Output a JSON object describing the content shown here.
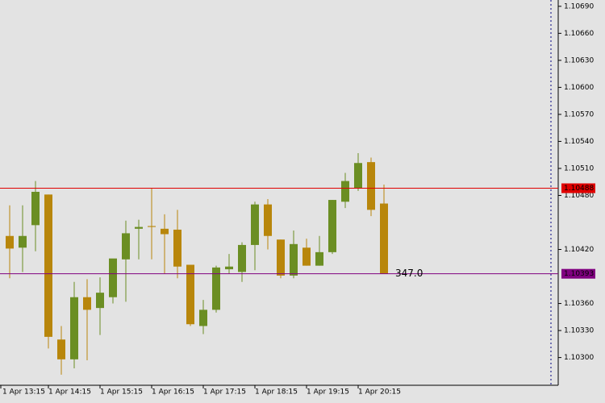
{
  "chart_data": {
    "type": "candlestick",
    "categories": [
      "1 Apr 13:15",
      null,
      null,
      null,
      "1 Apr 14:15",
      null,
      null,
      null,
      "1 Apr 15:15",
      null,
      null,
      null,
      "1 Apr 16:15",
      null,
      null,
      null,
      "1 Apr 17:15",
      null,
      null,
      null,
      "1 Apr 18:15",
      null,
      null,
      null,
      "1 Apr 19:15",
      null,
      null,
      null,
      "1 Apr 20:15",
      null,
      null
    ],
    "open": [
      null,
      1.10435,
      1.10422,
      1.10447,
      1.10481,
      1.1032,
      1.10298,
      1.10367,
      1.10355,
      1.10367,
      1.10409,
      1.10443,
      1.10446,
      1.10443,
      1.10442,
      1.10403,
      1.10335,
      1.10353,
      1.10398,
      1.10395,
      1.10425,
      1.1047,
      1.10431,
      1.10391,
      1.10422,
      1.10402,
      1.10417,
      1.10473,
      1.10488,
      1.10517,
      1.10471
    ],
    "high": [
      null,
      1.10469,
      1.10469,
      1.10496,
      1.10481,
      1.10335,
      1.10384,
      1.10387,
      1.10389,
      1.10409,
      1.10452,
      1.10453,
      1.10488,
      1.10459,
      1.10464,
      1.10403,
      1.10364,
      1.10402,
      1.10415,
      1.10428,
      1.10473,
      1.10476,
      1.10431,
      1.10441,
      1.10432,
      1.10435,
      1.10475,
      1.10505,
      1.10527,
      1.10522,
      1.10492
    ],
    "low": [
      null,
      1.10388,
      1.10395,
      1.10418,
      1.1031,
      1.10281,
      1.10288,
      1.10297,
      1.10325,
      1.1036,
      1.10362,
      1.10409,
      1.10409,
      1.10393,
      1.10388,
      1.10335,
      1.10326,
      1.1035,
      1.10393,
      1.10384,
      1.10397,
      1.1042,
      1.10388,
      1.10388,
      1.10402,
      1.10402,
      1.10415,
      1.10466,
      1.10485,
      1.10457,
      1.10393
    ],
    "close": [
      null,
      1.10421,
      1.10435,
      1.10484,
      1.10323,
      1.10298,
      1.10367,
      1.10353,
      1.10372,
      1.1041,
      1.10438,
      1.10445,
      1.10445,
      1.10437,
      1.10401,
      1.10337,
      1.10353,
      1.104,
      1.10401,
      1.10425,
      1.1047,
      1.10435,
      1.10391,
      1.10426,
      1.10402,
      1.10417,
      1.10475,
      1.10496,
      1.10516,
      1.10464,
      1.10393
    ],
    "up_color": "#6b8e23",
    "down_color": "#b8860b",
    "ylim": [
      1.10271,
      1.10697
    ],
    "yticks": [
      {
        "value": 1.1069,
        "label": "1.10690"
      },
      {
        "value": 1.1066,
        "label": "1.10660"
      },
      {
        "value": 1.1063,
        "label": "1.10630"
      },
      {
        "value": 1.106,
        "label": "1.10600"
      },
      {
        "value": 1.1057,
        "label": "1.10570"
      },
      {
        "value": 1.1054,
        "label": "1.10540"
      },
      {
        "value": 1.1051,
        "label": "1.10510"
      },
      {
        "value": 1.1048,
        "label": "1.10480"
      },
      {
        "value": 1.1042,
        "label": "1.10420"
      },
      {
        "value": 1.1036,
        "label": "1.10360"
      },
      {
        "value": 1.1033,
        "label": "1.10330"
      },
      {
        "value": 1.103,
        "label": "1.10300"
      }
    ],
    "price_lines": [
      {
        "value": 1.10488,
        "color": "#e00000"
      },
      {
        "value": 1.10393,
        "color": "#800080"
      }
    ],
    "annotation": "347.0"
  }
}
